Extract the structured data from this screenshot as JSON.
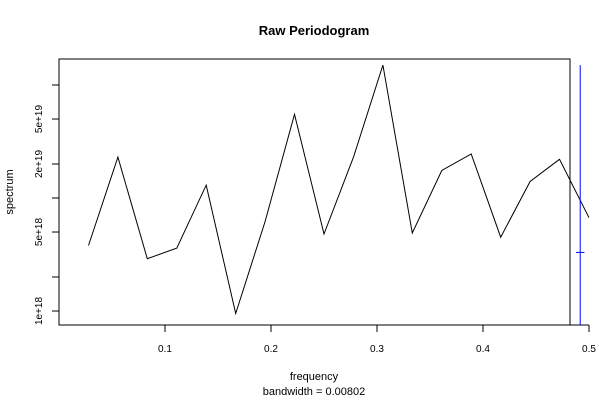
{
  "chart_data": {
    "type": "line",
    "title": "Raw Periodogram",
    "xlabel": "frequency",
    "sublabel": "bandwidth = 0.00802",
    "ylabel": "spectrum",
    "y_scale": "log",
    "xlim": [
      0.0,
      0.5
    ],
    "ylim": [
      8e+17,
      2e+20
    ],
    "x_ticks": [
      {
        "value": 0.1,
        "label": "0.1"
      },
      {
        "value": 0.2,
        "label": "0.2"
      },
      {
        "value": 0.3,
        "label": "0.3"
      },
      {
        "value": 0.4,
        "label": "0.4"
      },
      {
        "value": 0.5,
        "label": "0.5"
      }
    ],
    "y_ticks": [
      {
        "value": 1e+18,
        "label": "1e+18"
      },
      {
        "value": 2e+18,
        "label": ""
      },
      {
        "value": 5e+18,
        "label": "5e+18"
      },
      {
        "value": 1e+19,
        "label": ""
      },
      {
        "value": 2e+19,
        "label": "2e+19"
      },
      {
        "value": 5e+19,
        "label": "5e+19"
      },
      {
        "value": 1e+20,
        "label": ""
      }
    ],
    "series": [
      {
        "color": "#000000",
        "x": [
          0.0278,
          0.0556,
          0.0833,
          0.1111,
          0.1389,
          0.1667,
          0.1944,
          0.2222,
          0.25,
          0.2778,
          0.3056,
          0.3333,
          0.3611,
          0.3889,
          0.4167,
          0.4444,
          0.4722,
          0.5
        ],
        "y": [
          3.8e+18,
          2.3e+19,
          2.9e+18,
          3.6e+18,
          1.3e+19,
          9.5e+17,
          6.2e+18,
          5.5e+19,
          4.8e+18,
          2.3e+19,
          1.5e+20,
          4.9e+18,
          1.75e+19,
          2.45e+19,
          4.5e+18,
          1.4e+19,
          2.2e+19,
          6.7e+18
        ]
      }
    ],
    "bandwidth_marker": {
      "color": "#0000ff",
      "x": 0.4917,
      "y_center": 3.3e+18,
      "half_width": 0.004,
      "y_low": 8e+17,
      "y_high": 1.5e+20
    },
    "grid": false,
    "legend": "none"
  }
}
